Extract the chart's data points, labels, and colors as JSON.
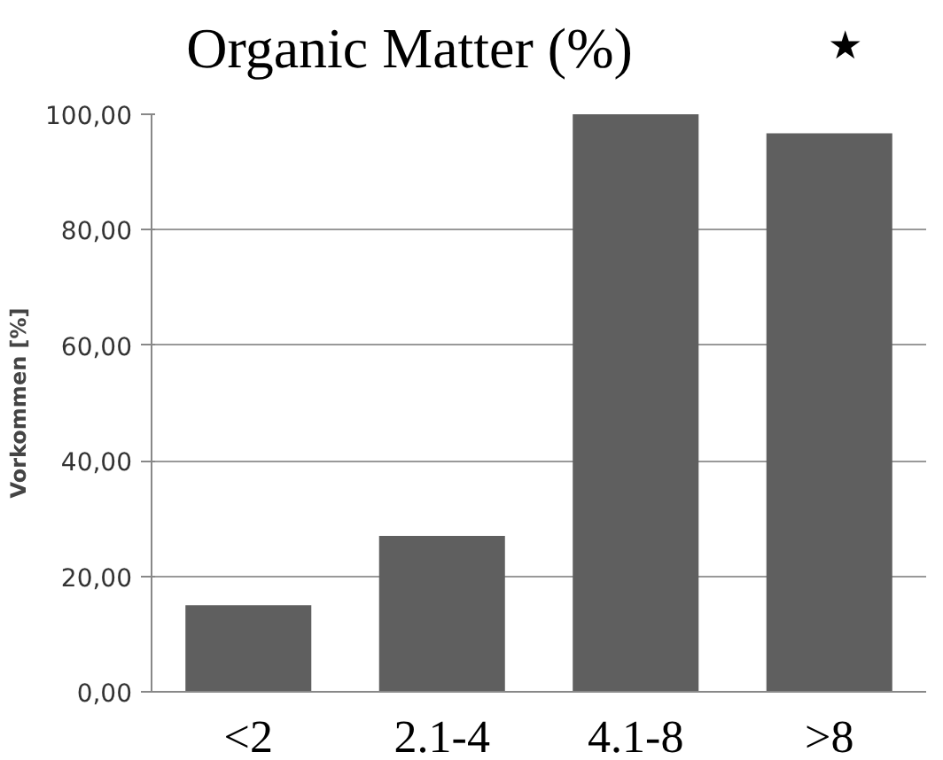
{
  "chart_data": {
    "type": "bar",
    "title": "Organic Matter (%)",
    "ylabel": "Vorkommen [%]",
    "categories": [
      "<2",
      "2.1-4",
      "4.1-8",
      ">8"
    ],
    "values": [
      15,
      27,
      100,
      96.7
    ],
    "color": "#5f5f5f",
    "ylim": [
      0,
      100
    ],
    "yticks": [
      {
        "value": 0,
        "label": "0,00"
      },
      {
        "value": 20,
        "label": "20,00"
      },
      {
        "value": 40,
        "label": "40,00"
      },
      {
        "value": 60,
        "label": "60,00"
      },
      {
        "value": 80,
        "label": "80,00"
      },
      {
        "value": 100,
        "label": "100,00"
      }
    ],
    "grid": "y",
    "annotations": [
      "★"
    ]
  }
}
